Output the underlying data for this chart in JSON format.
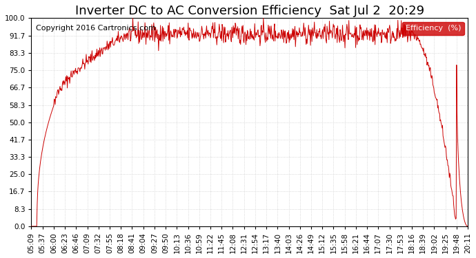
{
  "title": "Inverter DC to AC Conversion Efficiency  Sat Jul 2  20:29",
  "copyright": "Copyright 2016 Cartronics.com",
  "legend_label": "Efficiency  (%)",
  "legend_bg": "#cc0000",
  "legend_text_color": "#ffffff",
  "line_color": "#cc0000",
  "bg_color": "#ffffff",
  "grid_color": "#cccccc",
  "ylim": [
    0.0,
    100.0
  ],
  "yticks": [
    0.0,
    8.3,
    16.7,
    25.0,
    33.3,
    41.7,
    50.0,
    58.3,
    66.7,
    75.0,
    83.3,
    91.7,
    100.0
  ],
  "xtick_labels": [
    "05:09",
    "05:37",
    "06:00",
    "06:23",
    "06:46",
    "07:09",
    "07:32",
    "07:55",
    "08:18",
    "08:41",
    "09:04",
    "09:27",
    "09:50",
    "10:13",
    "10:36",
    "10:59",
    "11:22",
    "11:45",
    "12:08",
    "12:31",
    "12:54",
    "13:17",
    "13:40",
    "14:03",
    "14:26",
    "14:49",
    "15:12",
    "15:35",
    "15:58",
    "16:21",
    "16:44",
    "17:07",
    "17:30",
    "17:53",
    "18:16",
    "18:39",
    "19:02",
    "19:25",
    "19:48",
    "20:11"
  ],
  "title_fontsize": 13,
  "copyright_fontsize": 8,
  "tick_fontsize": 7.5
}
